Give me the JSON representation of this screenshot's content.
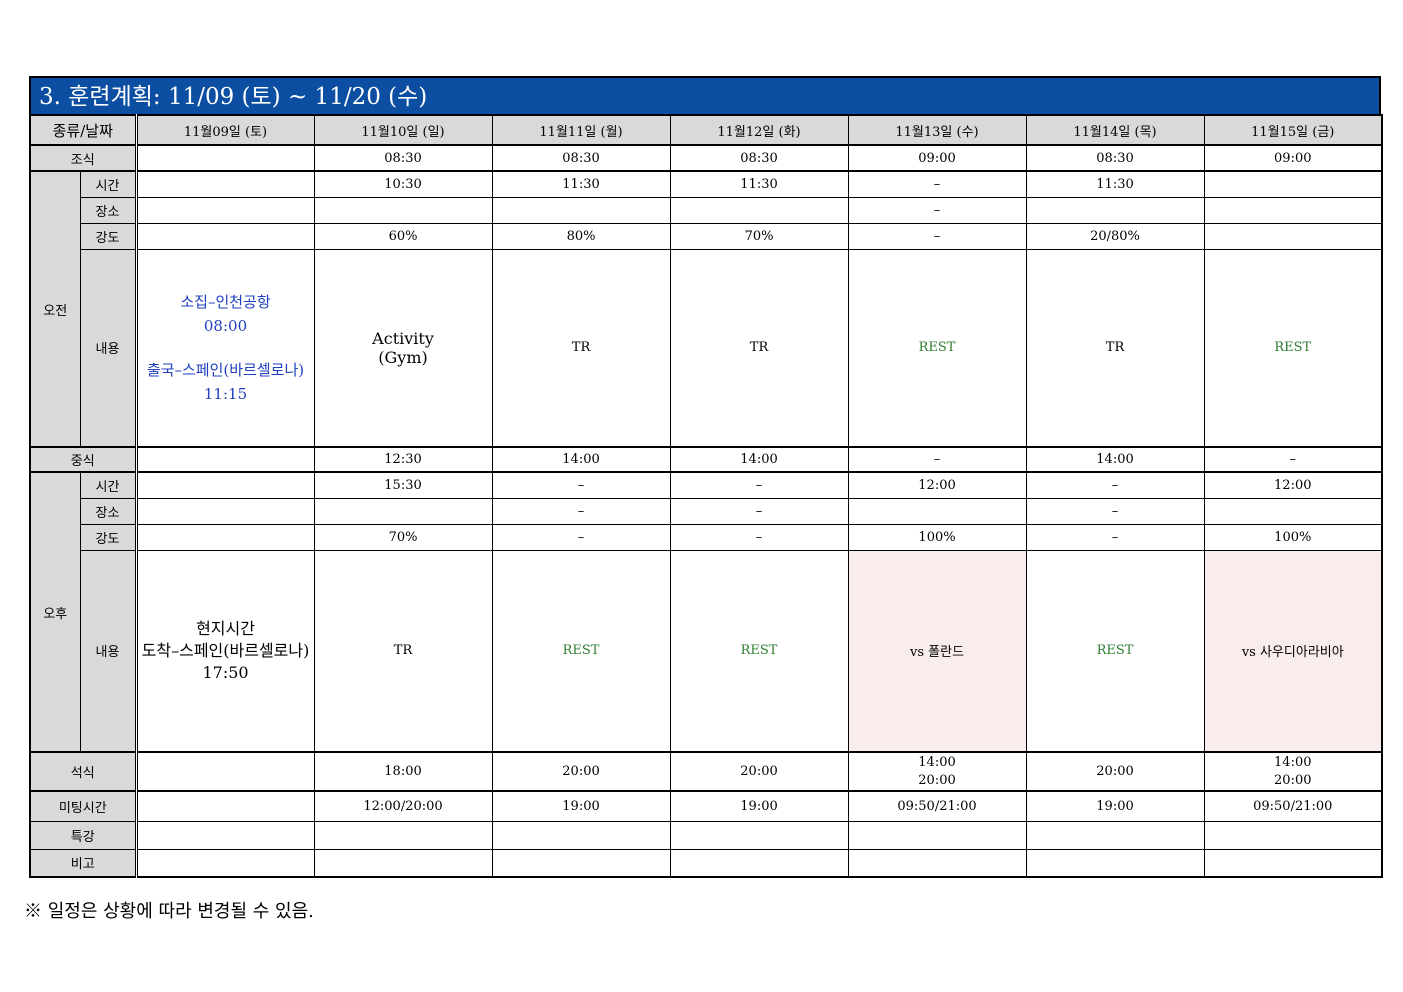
{
  "title": "3. 훈련계획: 11/09 (토) ~ 11/20 (수)",
  "header": {
    "corner": "종류/날짜",
    "dates": [
      "11월09일 (토)",
      "11월10일 (일)",
      "11월11일 (월)",
      "11월12일 (화)",
      "11월13일 (수)",
      "11월14일 (목)",
      "11월15일 (금)"
    ]
  },
  "labels": {
    "breakfast": "조식",
    "morning": "오전",
    "lunch": "중식",
    "afternoon": "오후",
    "dinner": "석식",
    "meeting": "미팅시간",
    "lecture": "특강",
    "remarks": "비고",
    "time": "시간",
    "place": "장소",
    "intensity": "강도",
    "content": "내용"
  },
  "breakfast": [
    "",
    "08:30",
    "08:30",
    "08:30",
    "09:00",
    "08:30",
    "09:00"
  ],
  "am": {
    "time": [
      "",
      "10:30",
      "11:30",
      "11:30",
      "–",
      "11:30",
      ""
    ],
    "place": [
      "",
      "",
      "",
      "",
      "–",
      "",
      ""
    ],
    "intensity": [
      "",
      "60%",
      "80%",
      "70%",
      "–",
      "20/80%",
      ""
    ],
    "content_day1": [
      "소집–인천공항",
      "08:00",
      "출국–스페인(바르셀로나)",
      "11:15"
    ],
    "content_day2": [
      "Activity",
      "(Gym)"
    ],
    "content": [
      "",
      "",
      "TR",
      "TR",
      "REST",
      "TR",
      "REST"
    ]
  },
  "lunch": [
    "",
    "12:30",
    "14:00",
    "14:00",
    "–",
    "14:00",
    "–"
  ],
  "pm": {
    "time": [
      "",
      "15:30",
      "–",
      "–",
      "12:00",
      "–",
      "12:00"
    ],
    "place": [
      "",
      "",
      "–",
      "–",
      "",
      "–",
      ""
    ],
    "intensity": [
      "",
      "70%",
      "–",
      "–",
      "100%",
      "–",
      "100%"
    ],
    "content_day1": [
      "현지시간",
      "도착–스페인(바르셀로나)",
      "17:50"
    ],
    "content": [
      "",
      "TR",
      "REST",
      "REST",
      "vs 폴란드",
      "REST",
      "vs 사우디아라비아"
    ]
  },
  "dinner": [
    "",
    "18:00",
    "20:00",
    "20:00",
    [
      "14:00",
      "20:00"
    ],
    "20:00",
    [
      "14:00",
      "20:00"
    ]
  ],
  "meeting": [
    "",
    "12:00/20:00",
    "19:00",
    "19:00",
    "09:50/21:00",
    "19:00",
    "09:50/21:00"
  ],
  "footnote": "※ 일정은 상황에 따라 변경될 수 있음.",
  "colors": {
    "title_bg": "#0b4ea2",
    "rest_text": "#2e7d32",
    "assembly_text": "#1f3fbf",
    "match_bg": "#f8ecec",
    "header_bg": "#d9d9d9"
  }
}
